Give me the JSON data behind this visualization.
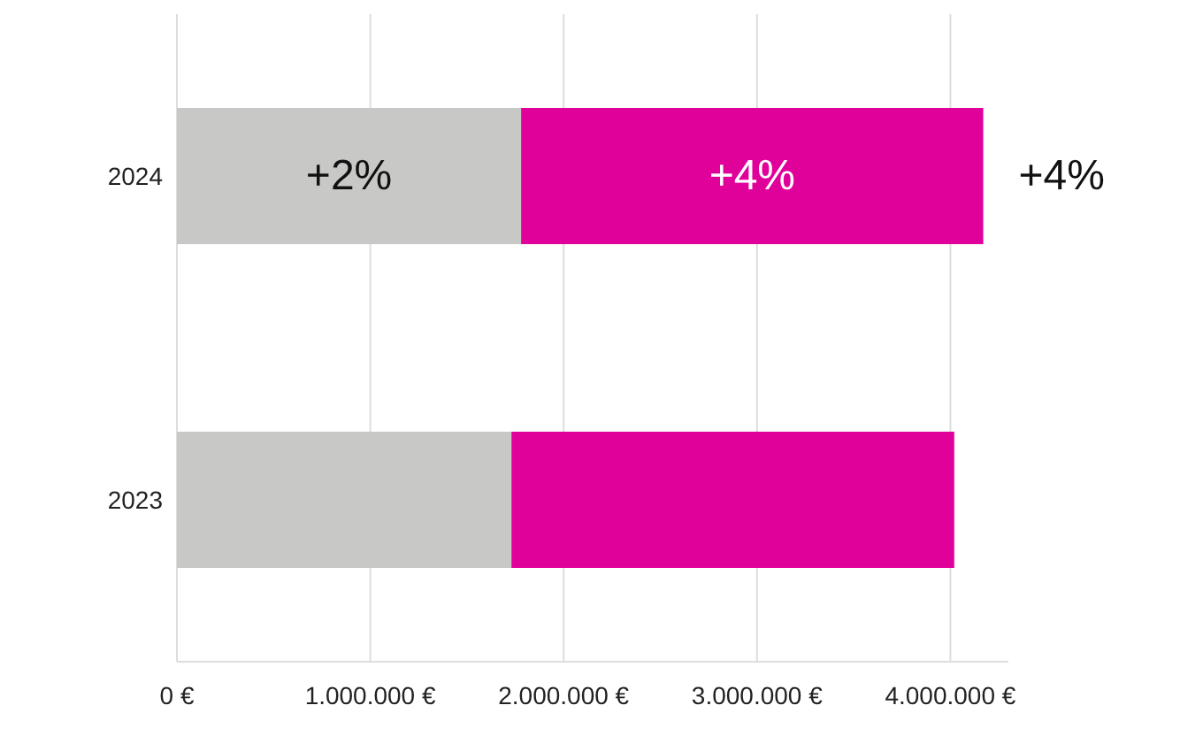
{
  "chart_data": {
    "type": "bar",
    "orientation": "horizontal",
    "stacked": true,
    "categories": [
      "2024",
      "2023"
    ],
    "series": [
      {
        "color": "#c8c8c6",
        "values": [
          1780000,
          1730000
        ]
      },
      {
        "color": "#e0009a",
        "values": [
          2390000,
          2290000
        ]
      }
    ],
    "annotations": [
      "+2%",
      "+4%",
      {
        "text": "+4%",
        "x": 4170000,
        "y": "2024"
      }
    ],
    "xlim": [
      0,
      4300000
    ],
    "xticks": [
      {
        "value": 0,
        "label": "0 €"
      },
      {
        "value": 1000000,
        "label": "1.000.000 €"
      },
      {
        "value": 2000000,
        "label": "2.000.000 €"
      },
      {
        "value": 3000000,
        "label": "3.000.000 €"
      },
      {
        "value": 4000000,
        "label": "4.000.000 €"
      }
    ],
    "grid": "x",
    "legend": false
  }
}
